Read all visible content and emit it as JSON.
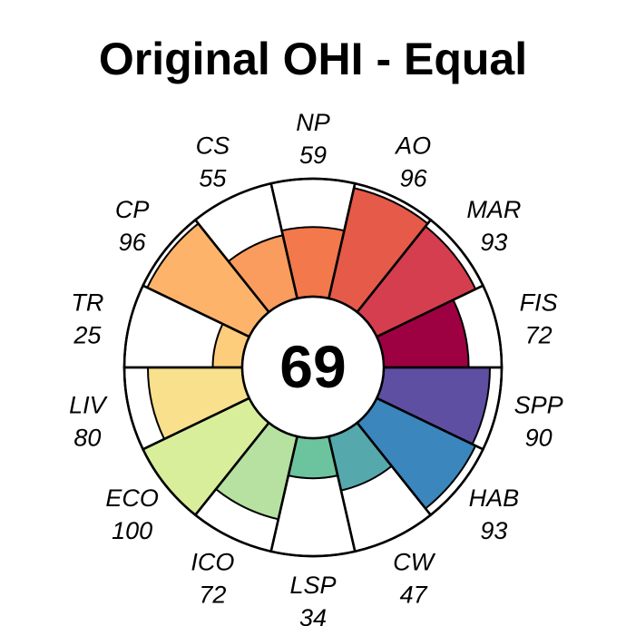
{
  "chart_data": {
    "type": "flower",
    "title": "Original OHI - Equal",
    "center_score": "69",
    "max_score": 100,
    "segments": [
      {
        "label": "FIS",
        "value": 72,
        "color": "#9e0142"
      },
      {
        "label": "MAR",
        "value": 93,
        "color": "#d53e4f"
      },
      {
        "label": "AO",
        "value": 96,
        "color": "#e55a48"
      },
      {
        "label": "NP",
        "value": 59,
        "color": "#f3784c"
      },
      {
        "label": "CS",
        "value": 55,
        "color": "#f99c5d"
      },
      {
        "label": "CP",
        "value": 96,
        "color": "#fdb46a"
      },
      {
        "label": "TR",
        "value": 25,
        "color": "#fdcd7b"
      },
      {
        "label": "LIV",
        "value": 80,
        "color": "#f8e08c"
      },
      {
        "label": "ECO",
        "value": 100,
        "color": "#d9ee9a"
      },
      {
        "label": "ICO",
        "value": 72,
        "color": "#b6e1a0"
      },
      {
        "label": "LSP",
        "value": 34,
        "color": "#6cc49e"
      },
      {
        "label": "CW",
        "value": 47,
        "color": "#55a9ad"
      },
      {
        "label": "HAB",
        "value": 93,
        "color": "#3a86bd"
      },
      {
        "label": "SPP",
        "value": 90,
        "color": "#5e4fa2"
      }
    ]
  }
}
